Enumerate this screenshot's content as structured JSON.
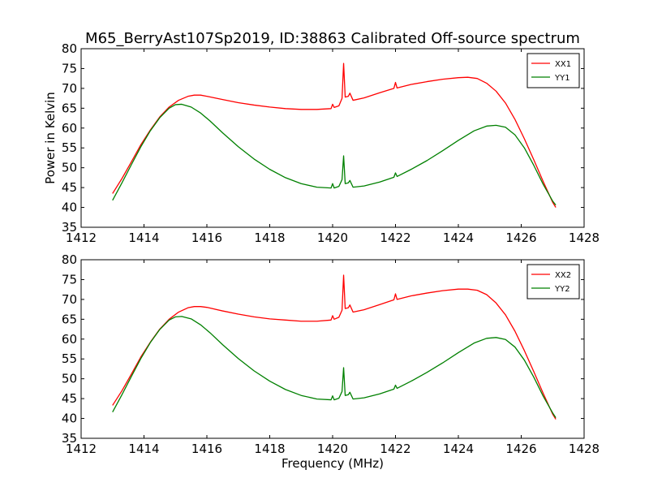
{
  "title": "M65_BerryAst107Sp2019, ID:38863 Calibrated Off-source spectrum",
  "chart_data": [
    {
      "type": "line",
      "title": "",
      "xlabel": "",
      "ylabel": "Power in Kelvin",
      "xlim": [
        1412,
        1428
      ],
      "ylim": [
        35,
        80
      ],
      "xticks": [
        "1412",
        "1414",
        "1416",
        "1418",
        "1420",
        "1422",
        "1424",
        "1426",
        "1428"
      ],
      "yticks": [
        "35",
        "40",
        "45",
        "50",
        "55",
        "60",
        "65",
        "70",
        "75",
        "80"
      ],
      "legend_position": "top-right",
      "grid": false,
      "series": [
        {
          "name": "XX1",
          "color": "#ff0000",
          "points": [
            [
              1413.0,
              43.5
            ],
            [
              1413.3,
              47.3
            ],
            [
              1413.6,
              51.5
            ],
            [
              1413.9,
              55.8
            ],
            [
              1414.2,
              59.5
            ],
            [
              1414.5,
              62.8
            ],
            [
              1414.8,
              65.3
            ],
            [
              1415.1,
              67.0
            ],
            [
              1415.4,
              68.0
            ],
            [
              1415.6,
              68.3
            ],
            [
              1415.8,
              68.3
            ],
            [
              1416.0,
              68.0
            ],
            [
              1416.5,
              67.2
            ],
            [
              1417.0,
              66.4
            ],
            [
              1417.5,
              65.8
            ],
            [
              1418.0,
              65.3
            ],
            [
              1418.5,
              64.9
            ],
            [
              1419.0,
              64.7
            ],
            [
              1419.5,
              64.7
            ],
            [
              1419.95,
              64.9
            ],
            [
              1420.0,
              66.0
            ],
            [
              1420.05,
              65.2
            ],
            [
              1420.2,
              65.6
            ],
            [
              1420.3,
              67.5
            ],
            [
              1420.35,
              76.3
            ],
            [
              1420.4,
              67.8
            ],
            [
              1420.5,
              68.0
            ],
            [
              1420.55,
              68.8
            ],
            [
              1420.65,
              67.0
            ],
            [
              1421.0,
              67.6
            ],
            [
              1421.5,
              68.9
            ],
            [
              1421.95,
              70.0
            ],
            [
              1422.0,
              71.5
            ],
            [
              1422.05,
              70.1
            ],
            [
              1422.5,
              71.0
            ],
            [
              1423.0,
              71.7
            ],
            [
              1423.5,
              72.3
            ],
            [
              1424.0,
              72.7
            ],
            [
              1424.3,
              72.8
            ],
            [
              1424.6,
              72.5
            ],
            [
              1424.9,
              71.3
            ],
            [
              1425.2,
              69.3
            ],
            [
              1425.5,
              66.3
            ],
            [
              1425.8,
              62.2
            ],
            [
              1426.1,
              57.3
            ],
            [
              1426.4,
              52.0
            ],
            [
              1426.7,
              46.5
            ],
            [
              1427.0,
              41.3
            ],
            [
              1427.1,
              40.0
            ]
          ]
        },
        {
          "name": "YY1",
          "color": "#008000",
          "points": [
            [
              1413.0,
              41.8
            ],
            [
              1413.3,
              46.2
            ],
            [
              1413.6,
              50.8
            ],
            [
              1413.9,
              55.3
            ],
            [
              1414.2,
              59.3
            ],
            [
              1414.5,
              62.6
            ],
            [
              1414.8,
              65.0
            ],
            [
              1415.0,
              65.9
            ],
            [
              1415.2,
              66.0
            ],
            [
              1415.5,
              65.3
            ],
            [
              1415.8,
              63.8
            ],
            [
              1416.1,
              61.8
            ],
            [
              1416.5,
              58.8
            ],
            [
              1417.0,
              55.3
            ],
            [
              1417.5,
              52.2
            ],
            [
              1418.0,
              49.6
            ],
            [
              1418.5,
              47.5
            ],
            [
              1419.0,
              46.0
            ],
            [
              1419.5,
              45.1
            ],
            [
              1419.95,
              44.9
            ],
            [
              1420.0,
              46.0
            ],
            [
              1420.05,
              44.9
            ],
            [
              1420.2,
              45.3
            ],
            [
              1420.3,
              47.0
            ],
            [
              1420.35,
              53.0
            ],
            [
              1420.4,
              46.0
            ],
            [
              1420.5,
              46.2
            ],
            [
              1420.55,
              46.8
            ],
            [
              1420.65,
              45.1
            ],
            [
              1421.0,
              45.4
            ],
            [
              1421.5,
              46.4
            ],
            [
              1421.95,
              47.6
            ],
            [
              1422.0,
              48.7
            ],
            [
              1422.05,
              47.8
            ],
            [
              1422.5,
              49.6
            ],
            [
              1423.0,
              51.8
            ],
            [
              1423.5,
              54.3
            ],
            [
              1424.0,
              56.9
            ],
            [
              1424.5,
              59.3
            ],
            [
              1424.9,
              60.5
            ],
            [
              1425.2,
              60.7
            ],
            [
              1425.5,
              60.2
            ],
            [
              1425.8,
              58.3
            ],
            [
              1426.1,
              55.0
            ],
            [
              1426.4,
              50.6
            ],
            [
              1426.7,
              45.8
            ],
            [
              1427.0,
              41.6
            ],
            [
              1427.1,
              40.6
            ]
          ]
        }
      ]
    },
    {
      "type": "line",
      "title": "",
      "xlabel": "Frequency (MHz)",
      "ylabel": "",
      "xlim": [
        1412,
        1428
      ],
      "ylim": [
        35,
        80
      ],
      "xticks": [
        "1412",
        "1414",
        "1416",
        "1418",
        "1420",
        "1422",
        "1424",
        "1426",
        "1428"
      ],
      "yticks": [
        "35",
        "40",
        "45",
        "50",
        "55",
        "60",
        "65",
        "70",
        "75",
        "80"
      ],
      "legend_position": "top-right",
      "grid": false,
      "series": [
        {
          "name": "XX2",
          "color": "#ff0000",
          "points": [
            [
              1413.0,
              43.3
            ],
            [
              1413.3,
              47.0
            ],
            [
              1413.6,
              51.2
            ],
            [
              1413.9,
              55.5
            ],
            [
              1414.2,
              59.2
            ],
            [
              1414.5,
              62.5
            ],
            [
              1414.8,
              65.0
            ],
            [
              1415.1,
              66.8
            ],
            [
              1415.4,
              67.9
            ],
            [
              1415.6,
              68.2
            ],
            [
              1415.8,
              68.2
            ],
            [
              1416.0,
              68.0
            ],
            [
              1416.5,
              67.1
            ],
            [
              1417.0,
              66.3
            ],
            [
              1417.5,
              65.6
            ],
            [
              1418.0,
              65.1
            ],
            [
              1418.5,
              64.8
            ],
            [
              1419.0,
              64.5
            ],
            [
              1419.5,
              64.5
            ],
            [
              1419.95,
              64.8
            ],
            [
              1420.0,
              65.9
            ],
            [
              1420.05,
              65.0
            ],
            [
              1420.2,
              65.5
            ],
            [
              1420.3,
              67.3
            ],
            [
              1420.35,
              76.1
            ],
            [
              1420.4,
              67.7
            ],
            [
              1420.5,
              67.9
            ],
            [
              1420.55,
              68.6
            ],
            [
              1420.65,
              66.8
            ],
            [
              1421.0,
              67.4
            ],
            [
              1421.5,
              68.7
            ],
            [
              1421.95,
              69.9
            ],
            [
              1422.0,
              71.4
            ],
            [
              1422.05,
              70.0
            ],
            [
              1422.5,
              70.9
            ],
            [
              1423.0,
              71.6
            ],
            [
              1423.5,
              72.2
            ],
            [
              1424.0,
              72.6
            ],
            [
              1424.3,
              72.6
            ],
            [
              1424.6,
              72.3
            ],
            [
              1424.9,
              71.2
            ],
            [
              1425.2,
              69.1
            ],
            [
              1425.5,
              66.1
            ],
            [
              1425.8,
              62.0
            ],
            [
              1426.1,
              57.1
            ],
            [
              1426.4,
              51.8
            ],
            [
              1426.7,
              46.3
            ],
            [
              1427.0,
              41.1
            ],
            [
              1427.1,
              39.8
            ]
          ]
        },
        {
          "name": "YY2",
          "color": "#008000",
          "points": [
            [
              1413.0,
              41.6
            ],
            [
              1413.3,
              46.0
            ],
            [
              1413.6,
              50.6
            ],
            [
              1413.9,
              55.1
            ],
            [
              1414.2,
              59.1
            ],
            [
              1414.5,
              62.4
            ],
            [
              1414.8,
              64.8
            ],
            [
              1415.0,
              65.6
            ],
            [
              1415.2,
              65.7
            ],
            [
              1415.5,
              65.1
            ],
            [
              1415.8,
              63.6
            ],
            [
              1416.1,
              61.6
            ],
            [
              1416.5,
              58.6
            ],
            [
              1417.0,
              55.1
            ],
            [
              1417.5,
              52.0
            ],
            [
              1418.0,
              49.4
            ],
            [
              1418.5,
              47.3
            ],
            [
              1419.0,
              45.8
            ],
            [
              1419.5,
              44.9
            ],
            [
              1419.95,
              44.7
            ],
            [
              1420.0,
              45.7
            ],
            [
              1420.05,
              44.7
            ],
            [
              1420.2,
              45.1
            ],
            [
              1420.3,
              46.8
            ],
            [
              1420.35,
              52.8
            ],
            [
              1420.4,
              45.8
            ],
            [
              1420.5,
              46.0
            ],
            [
              1420.55,
              46.6
            ],
            [
              1420.65,
              44.9
            ],
            [
              1421.0,
              45.2
            ],
            [
              1421.5,
              46.2
            ],
            [
              1421.95,
              47.4
            ],
            [
              1422.0,
              48.4
            ],
            [
              1422.05,
              47.6
            ],
            [
              1422.5,
              49.4
            ],
            [
              1423.0,
              51.6
            ],
            [
              1423.5,
              54.0
            ],
            [
              1424.0,
              56.6
            ],
            [
              1424.5,
              59.0
            ],
            [
              1424.9,
              60.2
            ],
            [
              1425.2,
              60.4
            ],
            [
              1425.5,
              59.9
            ],
            [
              1425.8,
              58.0
            ],
            [
              1426.1,
              54.7
            ],
            [
              1426.4,
              50.4
            ],
            [
              1426.7,
              45.6
            ],
            [
              1427.0,
              41.4
            ],
            [
              1427.1,
              40.2
            ]
          ]
        }
      ]
    }
  ]
}
